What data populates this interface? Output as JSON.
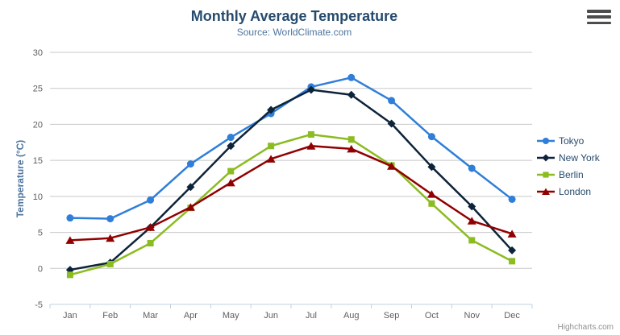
{
  "credits": {
    "label": "Highcharts.com"
  },
  "context_menu": {
    "icon": "hamburger-icon"
  },
  "colors": {
    "title": "#274b6d",
    "subtitle": "#4d759e",
    "axis_title": "#4d759e",
    "axis_label": "#606060",
    "grid": "#c8c8c8",
    "axis_line": "#c0d0e0",
    "credits": "#909090",
    "menu_icon": "#4d4d4d"
  },
  "chart_data": {
    "type": "line",
    "title": "Monthly Average Temperature",
    "subtitle": "Source: WorldClimate.com",
    "categories": [
      "Jan",
      "Feb",
      "Mar",
      "Apr",
      "May",
      "Jun",
      "Jul",
      "Aug",
      "Sep",
      "Oct",
      "Nov",
      "Dec"
    ],
    "xlabel": "",
    "ylabel": "Temperature (°C)",
    "ylim": [
      -5,
      30
    ],
    "ytick_interval": 5,
    "yticks": [
      -5,
      0,
      5,
      10,
      15,
      20,
      25,
      30
    ],
    "grid": true,
    "legend_position": "right",
    "series": [
      {
        "name": "Tokyo",
        "color": "#2f7ed8",
        "marker": "circle",
        "values": [
          7.0,
          6.9,
          9.5,
          14.5,
          18.2,
          21.5,
          25.2,
          26.5,
          23.3,
          18.3,
          13.9,
          9.6
        ]
      },
      {
        "name": "New York",
        "color": "#0d233a",
        "marker": "diamond",
        "values": [
          -0.2,
          0.8,
          5.7,
          11.3,
          17.0,
          22.0,
          24.8,
          24.1,
          20.1,
          14.1,
          8.6,
          2.5
        ]
      },
      {
        "name": "Berlin",
        "color": "#8bbc21",
        "marker": "square",
        "values": [
          -0.9,
          0.6,
          3.5,
          8.4,
          13.5,
          17.0,
          18.6,
          17.9,
          14.3,
          9.0,
          3.9,
          1.0
        ]
      },
      {
        "name": "London",
        "color": "#910000",
        "marker": "triangle",
        "values": [
          3.9,
          4.2,
          5.7,
          8.5,
          11.9,
          15.2,
          17.0,
          16.6,
          14.2,
          10.3,
          6.6,
          4.8
        ]
      }
    ]
  }
}
